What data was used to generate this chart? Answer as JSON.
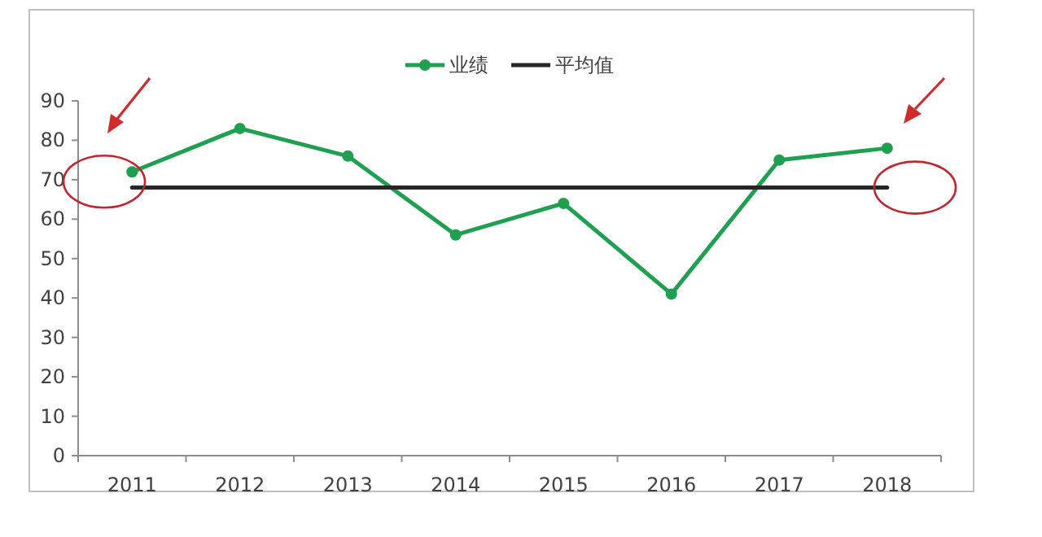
{
  "chart_data": {
    "type": "line",
    "categories": [
      "2011",
      "2012",
      "2013",
      "2014",
      "2015",
      "2016",
      "2017",
      "2018"
    ],
    "series": [
      {
        "name": "业绩",
        "color": "#1fa050",
        "values": [
          72,
          83,
          76,
          56,
          64,
          41,
          75,
          78
        ]
      },
      {
        "name": "平均值",
        "color": "#262626",
        "values": [
          68,
          68,
          68,
          68,
          68,
          68,
          68,
          68
        ],
        "marker": "none"
      }
    ],
    "ylim": [
      0,
      90
    ],
    "yticks": [
      0,
      10,
      20,
      30,
      40,
      50,
      60,
      70,
      80,
      90
    ],
    "legend": "top",
    "marker": "circle",
    "line_style": "solid",
    "grid": false
  }
}
